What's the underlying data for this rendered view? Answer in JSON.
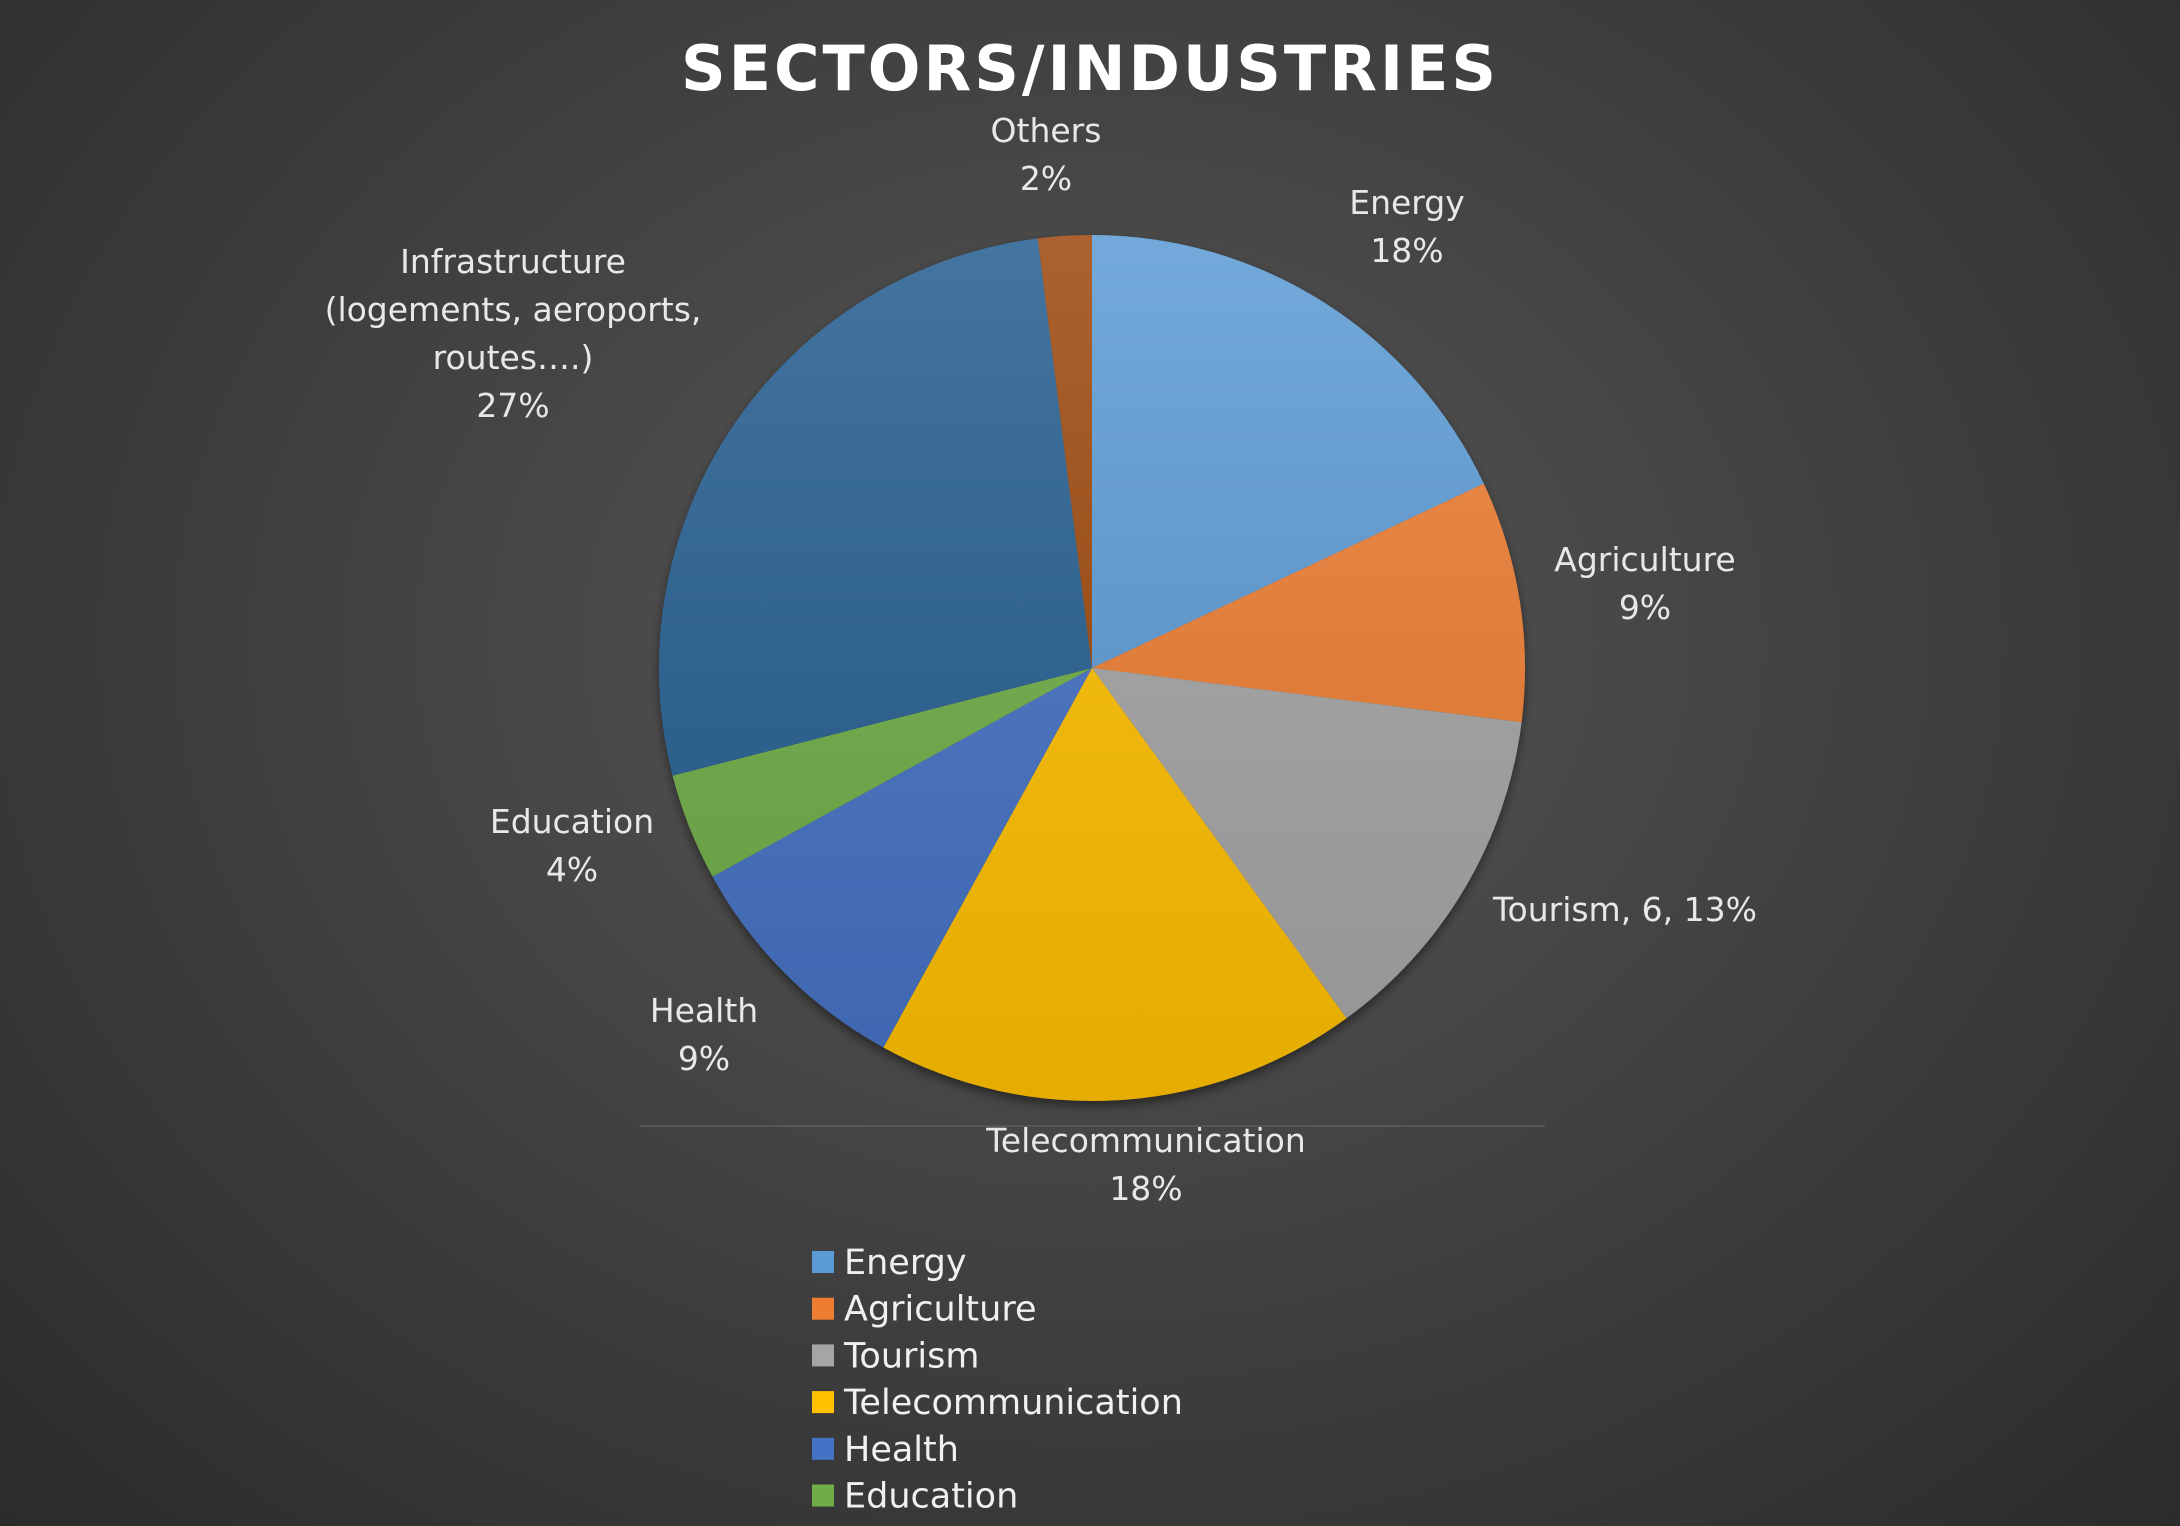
{
  "chart_data": {
    "type": "pie",
    "title": "SECTORS/INDUSTRIES",
    "categories": [
      "Energy",
      "Agriculture",
      "Tourism",
      "Telecommunication",
      "Health",
      "Education",
      "Infrastructure (logements, aeroports, routes….)",
      "Others"
    ],
    "values": [
      18,
      9,
      13,
      18,
      9,
      4,
      27,
      2
    ],
    "unit": "%",
    "colors": [
      "#5b9bd5",
      "#ed7d31",
      "#a5a5a5",
      "#ffc000",
      "#4472c4",
      "#70ad47",
      "#255e91",
      "#9e480e"
    ],
    "data_labels": [
      [
        "Energy",
        "18%"
      ],
      [
        "Agriculture",
        "9%"
      ],
      [
        "Tourism, 6, 13%"
      ],
      [
        "Telecommunication",
        "18%"
      ],
      [
        "Health",
        "9%"
      ],
      [
        "Education",
        "4%"
      ],
      [
        "Infrastructure",
        "(logements, aeroports,",
        "routes….)",
        "27%"
      ],
      [
        "Others",
        "2%"
      ]
    ],
    "legend": {
      "position": "bottom",
      "entries": [
        "Energy",
        "Agriculture",
        "Tourism",
        "Telecommunication",
        "Health",
        "Education"
      ]
    }
  }
}
